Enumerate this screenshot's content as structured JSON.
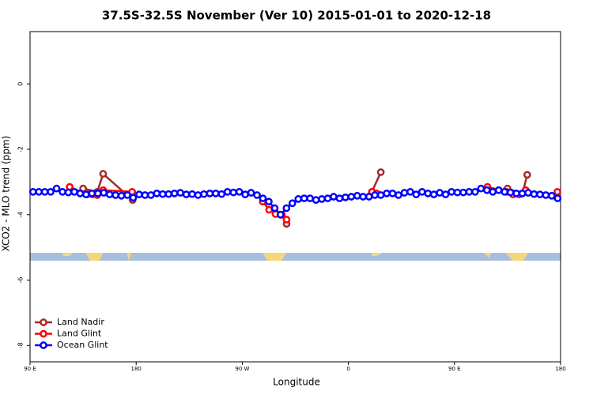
{
  "chart_data": {
    "type": "line",
    "title": "37.5S-32.5S November (Ver 10)   2015-01-01 to 2020-12-18",
    "x_label": "Longitude",
    "y_label": "XCO2 - MLO trend (ppm)",
    "xlim": [
      90,
      540
    ],
    "xticks": [
      {
        "value": 90,
        "label": "90 E"
      },
      {
        "value": 180,
        "label": "180"
      },
      {
        "value": 270,
        "label": "90 W"
      },
      {
        "value": 360,
        "label": "0"
      },
      {
        "value": 450,
        "label": "90 E"
      },
      {
        "value": 540,
        "label": "180"
      }
    ],
    "ylim": [
      -8.5,
      1.6
    ],
    "yticks": [
      0,
      -2,
      -4,
      -6,
      -8
    ],
    "legend": "bottom-left",
    "series": [
      {
        "name": "Land Nadir",
        "color": "#a52a2a",
        "x": [
          135,
          147,
          152,
          177,
          null,
          307.6,
          null,
          380,
          387.5,
          null,
          495,
          507.7,
          511.7
        ],
        "values": [
          -3.2,
          -3.3,
          -2.75,
          -3.55,
          null,
          -4.28,
          null,
          -3.3,
          -2.7,
          null,
          -3.2,
          -3.35,
          -2.78
        ]
      },
      {
        "name": "Land Glint",
        "color": "#ff0000",
        "x": [
          123.6,
          138.4,
          143,
          147,
          152,
          176.6,
          null,
          287.4,
          292.8,
          298.2,
          303.6,
          307.6,
          null,
          380.1,
          384,
          null,
          478,
          494.3,
          499.6,
          505,
          510.4,
          null,
          537.3
        ],
        "values": [
          -3.15,
          -3.38,
          -3.38,
          -3.4,
          -3.25,
          -3.3,
          null,
          -3.6,
          -3.85,
          -3.98,
          -4.0,
          -4.15,
          null,
          -3.3,
          -3.35,
          null,
          -3.15,
          -3.3,
          -3.38,
          -3.38,
          -3.25,
          null,
          -3.3
        ]
      },
      {
        "name": "Ocean Glint",
        "color": "#0000ff",
        "x": [
          92.5,
          97.5,
          102.5,
          107.5,
          112.5,
          117.5,
          122.5,
          127.5,
          132.5,
          137.5,
          142.5,
          147.5,
          152.5,
          157.5,
          162.5,
          167.5,
          172.5,
          177.5,
          182.5,
          187.5,
          192.5,
          197.5,
          202.5,
          207.5,
          212.5,
          217.5,
          222.5,
          227.5,
          232.5,
          237.5,
          242.5,
          247.5,
          252.5,
          257.5,
          262.5,
          267.5,
          272.5,
          277.5,
          282.5,
          287.5,
          292.5,
          297.5,
          302.5,
          307.5,
          312.5,
          317.5,
          322.5,
          327.5,
          332.5,
          337.5,
          342.5,
          347.5,
          352.5,
          357.5,
          362.5,
          367.5,
          372.5,
          377.5,
          382.5,
          387.5,
          392.5,
          397.5,
          402.5,
          407.5,
          412.5,
          417.5,
          422.5,
          427.5,
          432.5,
          437.5,
          442.5,
          447.5,
          452.5,
          457.5,
          462.5,
          467.5,
          472.5,
          477.5,
          482.5,
          487.5,
          492.5,
          497.5,
          502.5,
          507.5,
          512.5,
          517.5,
          522.5,
          527.5,
          532.5,
          537.5
        ],
        "values": [
          -3.3,
          -3.3,
          -3.3,
          -3.3,
          -3.2,
          -3.3,
          -3.32,
          -3.3,
          -3.35,
          -3.38,
          -3.35,
          -3.35,
          -3.33,
          -3.38,
          -3.4,
          -3.42,
          -3.4,
          -3.48,
          -3.38,
          -3.4,
          -3.4,
          -3.35,
          -3.37,
          -3.37,
          -3.35,
          -3.33,
          -3.38,
          -3.37,
          -3.4,
          -3.37,
          -3.35,
          -3.35,
          -3.37,
          -3.3,
          -3.32,
          -3.3,
          -3.38,
          -3.33,
          -3.4,
          -3.5,
          -3.6,
          -3.8,
          -4.0,
          -3.8,
          -3.65,
          -3.52,
          -3.5,
          -3.5,
          -3.55,
          -3.52,
          -3.5,
          -3.45,
          -3.5,
          -3.47,
          -3.45,
          -3.42,
          -3.45,
          -3.45,
          -3.4,
          -3.4,
          -3.35,
          -3.35,
          -3.4,
          -3.33,
          -3.3,
          -3.38,
          -3.3,
          -3.35,
          -3.38,
          -3.33,
          -3.38,
          -3.3,
          -3.32,
          -3.32,
          -3.3,
          -3.3,
          -3.2,
          -3.25,
          -3.3,
          -3.25,
          -3.3,
          -3.32,
          -3.35,
          -3.35,
          -3.33,
          -3.37,
          -3.38,
          -3.4,
          -3.42,
          -3.5
        ]
      }
    ]
  }
}
